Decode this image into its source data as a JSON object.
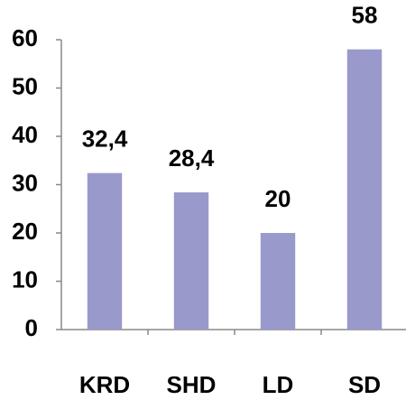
{
  "chart_data": {
    "type": "bar",
    "categories": [
      "KRD",
      "SHD",
      "LD",
      "SD"
    ],
    "values": [
      32.4,
      28.4,
      20,
      58
    ],
    "value_labels": [
      "32,4",
      "28,4",
      "20",
      "58"
    ],
    "color": "#9999cc",
    "ylim": [
      0,
      60
    ],
    "yticks": [
      0,
      10,
      20,
      30,
      40,
      50,
      60
    ],
    "grid": false
  }
}
